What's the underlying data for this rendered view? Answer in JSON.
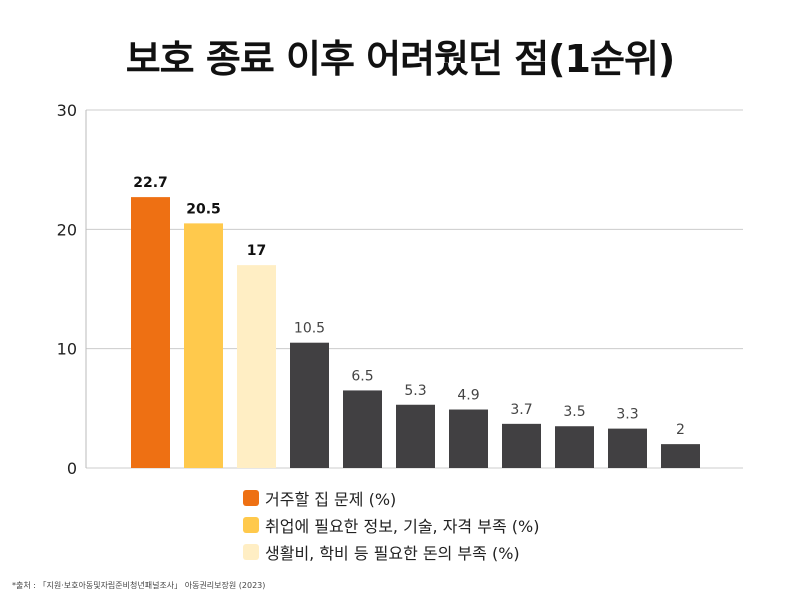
{
  "chart_data": {
    "type": "bar",
    "title": "보호 종료 이후 어려웠던 점(1순위)",
    "ylim": [
      0,
      30
    ],
    "yticks": [
      0,
      10,
      20,
      30
    ],
    "grid": true,
    "values": [
      22.7,
      20.5,
      17,
      10.5,
      6.5,
      5.3,
      4.9,
      3.7,
      3.5,
      3.3,
      2
    ],
    "value_labels": [
      "22.7",
      "20.5",
      "17",
      "10.5",
      "6.5",
      "5.3",
      "4.9",
      "3.7",
      "3.5",
      "3.3",
      "2"
    ],
    "colors": [
      "#EE7013",
      "#FFC94C",
      "#FFEEC4",
      "#414042",
      "#414042",
      "#414042",
      "#414042",
      "#414042",
      "#414042",
      "#414042",
      "#414042"
    ],
    "highlighted_count": 3,
    "legend": [
      {
        "label": "거주할 집 문제 (%)",
        "color": "#EE7013"
      },
      {
        "label": "취업에 필요한 정보, 기술, 자격 부족 (%)",
        "color": "#FFC94C"
      },
      {
        "label": "생활비, 학비 등 필요한 돈의 부족 (%)",
        "color": "#FFEEC4"
      }
    ],
    "legend_position": "bottom"
  },
  "source_note": "*출처 : 「지원·보호아동및자립준비청년패널조사」 아동권리보장원 (2023)"
}
